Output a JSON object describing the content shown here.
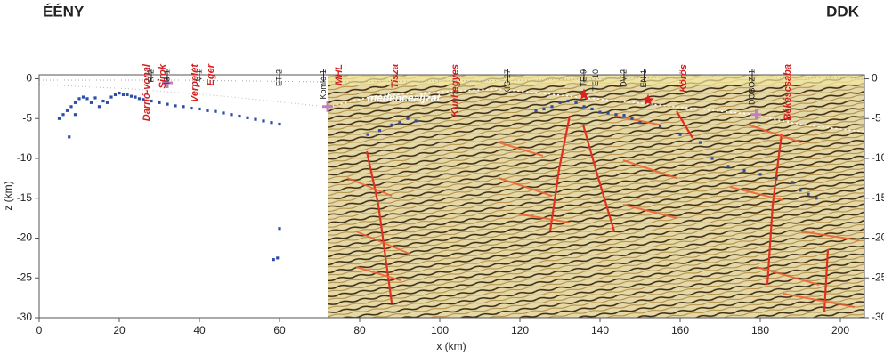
{
  "chart_data": {
    "type": "scatter",
    "corner_left": "ÉÉNY",
    "corner_right": "DDK",
    "xlabel": "x (km)",
    "ylabel": "z (km)",
    "xlim": [
      0,
      206
    ],
    "ylim": [
      -30,
      0.5
    ],
    "xticks": [
      0,
      20,
      40,
      60,
      80,
      100,
      120,
      140,
      160,
      180,
      200
    ],
    "yticks": [
      0,
      -5,
      -10,
      -15,
      -20,
      -25,
      -30
    ],
    "grid": false,
    "image_label": {
      "text": "medencealjzat",
      "x": 91,
      "y": -2.5
    },
    "series": [
      {
        "color": "#2b4fa8",
        "x": [
          5,
          6,
          7,
          7.5,
          8,
          9,
          9,
          10,
          11,
          12,
          13,
          14,
          15,
          16,
          17,
          18,
          19,
          20,
          21,
          22,
          23,
          24,
          25,
          26,
          28,
          30,
          32,
          34,
          36,
          38,
          40,
          42,
          44,
          46,
          48,
          50,
          52,
          54,
          56,
          58,
          60,
          60,
          58.5,
          59.5,
          82,
          85,
          88,
          90,
          92,
          94,
          124,
          126,
          128,
          130,
          132,
          134,
          136,
          138,
          140,
          142,
          144,
          146,
          148,
          150,
          155,
          160,
          165,
          168,
          172,
          176,
          180,
          184,
          188,
          190,
          192,
          194
        ],
        "values": [
          -5,
          -4.5,
          -4,
          -7.3,
          -3.5,
          -3,
          -4.5,
          -2.5,
          -2.3,
          -2.5,
          -3,
          -2.4,
          -3.5,
          -2.8,
          -3,
          -2.3,
          -2,
          -1.8,
          -2,
          -2,
          -2.2,
          -2.3,
          -2.5,
          -2.6,
          -2.8,
          -3,
          -3.2,
          -3.4,
          -3.5,
          -3.7,
          -3.8,
          -4,
          -4.1,
          -4.3,
          -4.5,
          -4.7,
          -4.9,
          -5.1,
          -5.3,
          -5.5,
          -5.7,
          -18.8,
          -22.7,
          -22.5,
          -7,
          -6.5,
          -5.8,
          -5.5,
          -5,
          -5.3,
          -4,
          -3.8,
          -3.5,
          -3,
          -2.8,
          -3,
          -3.5,
          -3.8,
          -4.2,
          -4.3,
          -4.5,
          -4.6,
          -5,
          -5.5,
          -6,
          -7,
          -8,
          -10,
          -11,
          -11.5,
          -12,
          -12.5,
          -13,
          -14,
          -14.5,
          -15
        ]
      }
    ],
    "markers": {
      "color": "#c080c0",
      "x": [
        32,
        72,
        179
      ],
      "values": [
        -0.5,
        -3.5,
        -4.5
      ]
    },
    "stars": {
      "color": "#e02020",
      "x": [
        136,
        152
      ],
      "values": [
        -2,
        -2.7
      ]
    },
    "wells": [
      {
        "label": "R-2",
        "x": 28
      },
      {
        "label": "IS-1",
        "x": 32
      },
      {
        "label": "V-1",
        "x": 40
      },
      {
        "label": "ET-2",
        "x": 60
      },
      {
        "label": "Komló-1",
        "x": 71
      },
      {
        "label": "KIS-27",
        "x": 117
      },
      {
        "label": "TE-9",
        "x": 136
      },
      {
        "label": "TE-10",
        "x": 139
      },
      {
        "label": "DV-2",
        "x": 146
      },
      {
        "label": "EN-1",
        "x": 151
      },
      {
        "label": "DOBOZ-1",
        "x": 178
      }
    ],
    "places": [
      {
        "label": "Darnó-vonal",
        "x": 26
      },
      {
        "label": "Sirok",
        "x": 30
      },
      {
        "label": "Verpelét",
        "x": 38
      },
      {
        "label": "Eger",
        "x": 42
      },
      {
        "label": "MHL",
        "x": 74
      },
      {
        "label": "Tisza",
        "x": 88
      },
      {
        "label": "Kunhegyes",
        "x": 103
      },
      {
        "label": "Körös",
        "x": 160
      },
      {
        "label": "Békéscsaba",
        "x": 186
      }
    ]
  }
}
